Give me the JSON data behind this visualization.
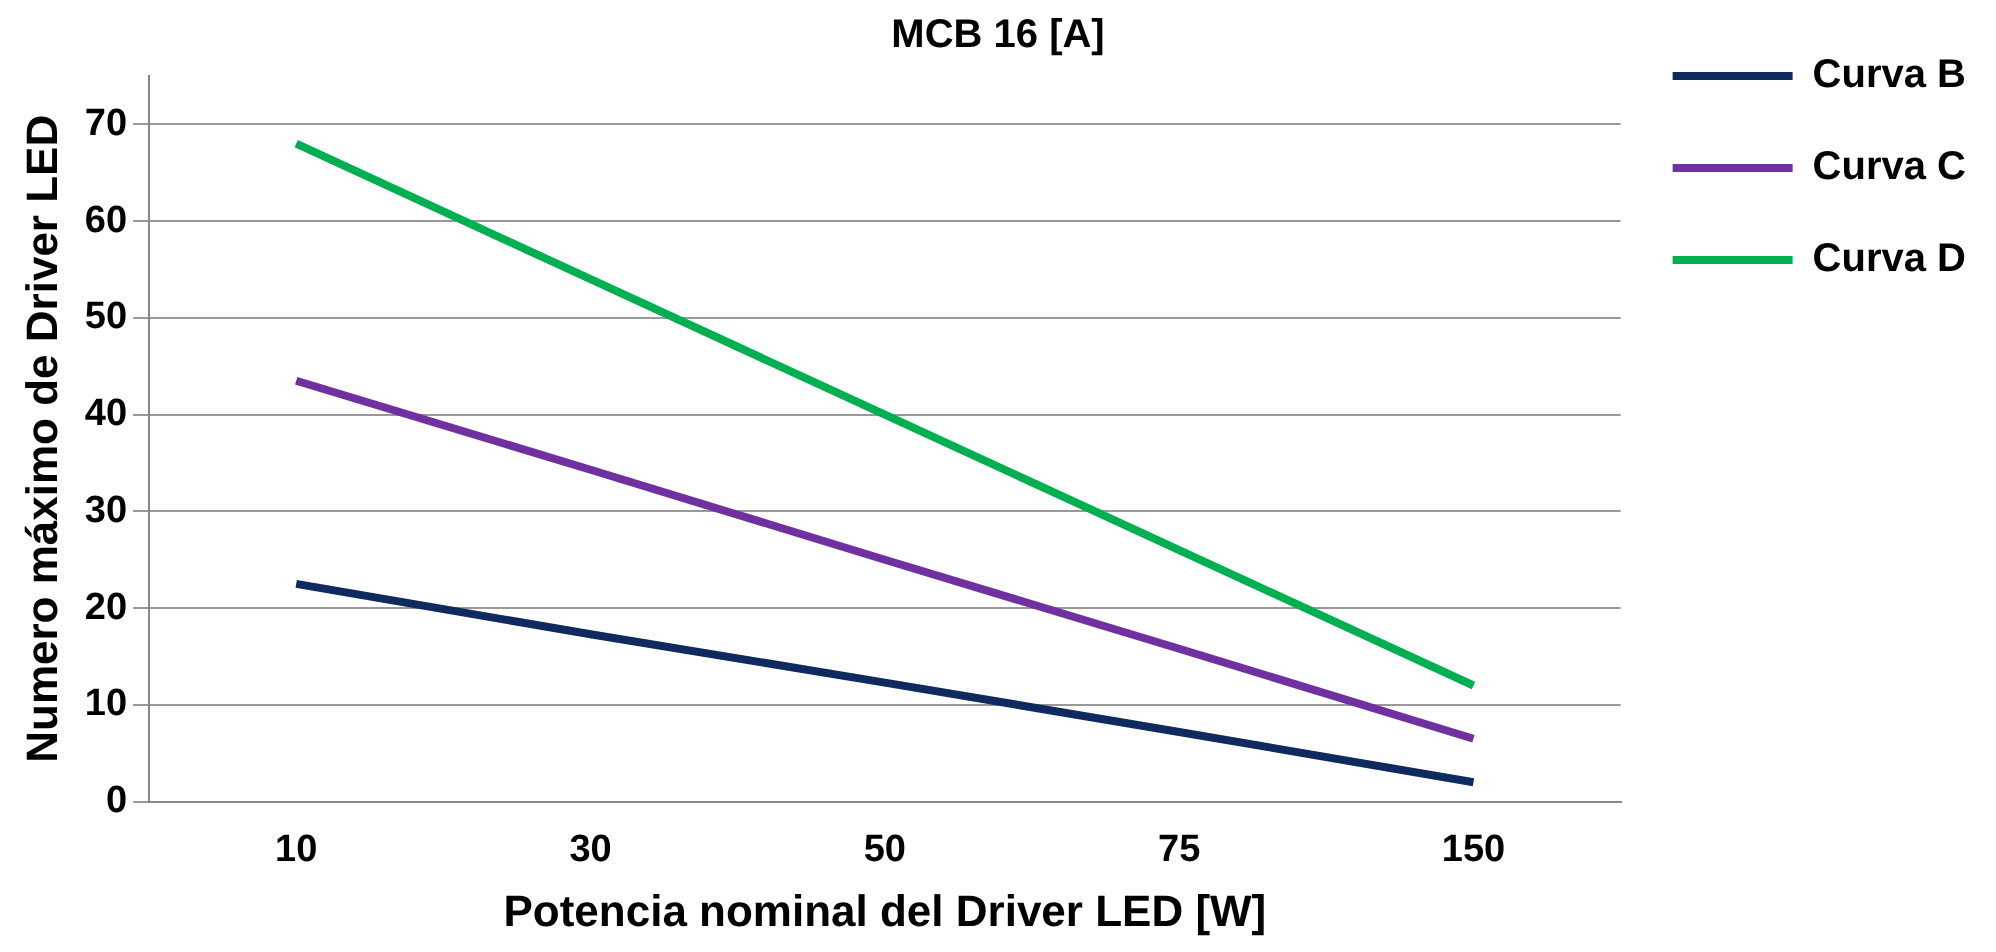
{
  "chart_data": {
    "type": "line",
    "title": "MCB 16 [A]",
    "xlabel": "Potencia nominal del Driver LED [W]",
    "ylabel": "Numero máximo de Driver LED",
    "categories": [
      "10",
      "30",
      "50",
      "75",
      "150"
    ],
    "series": [
      {
        "name": "Curva B",
        "color": "#0e2a5f",
        "values": [
          22.5,
          17.3,
          12.3,
          7.2,
          2
        ]
      },
      {
        "name": "Curva C",
        "color": "#7030a0",
        "values": [
          43.5,
          34.3,
          25,
          15.8,
          6.5
        ]
      },
      {
        "name": "Curva D",
        "color": "#00b050",
        "values": [
          68,
          54,
          40,
          26,
          12
        ]
      }
    ],
    "ylim": [
      0,
      75
    ],
    "yticks": [
      0,
      10,
      20,
      30,
      40,
      50,
      60,
      70
    ],
    "grid": "y",
    "legend": "right",
    "marker": "none",
    "line_style": "solid"
  }
}
